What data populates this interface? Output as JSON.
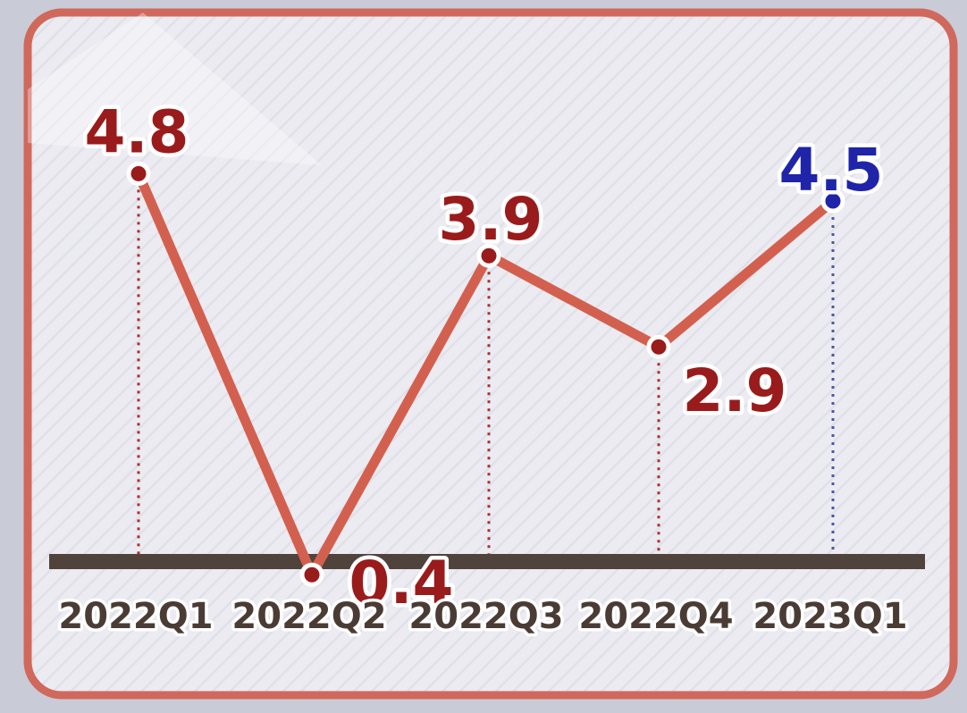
{
  "chart_data": {
    "type": "line",
    "categories": [
      "2022Q1",
      "2022Q2",
      "2022Q3",
      "2022Q4",
      "2023Q1"
    ],
    "values": [
      4.8,
      0.4,
      3.9,
      2.9,
      4.5
    ],
    "value_labels": [
      "4.8",
      "0.4",
      "3.9",
      "2.9",
      "4.5"
    ],
    "ylim": [
      0,
      5.6
    ],
    "grid": false,
    "title": "",
    "xlabel": "",
    "ylabel": ""
  },
  "colors": {
    "line": "#d3604f",
    "actual_point": "#9a1b1b",
    "forecast_point": "#1f24a8",
    "baseline": "#4f433c",
    "frame": "#d0685c",
    "panel": "#eaeaf0"
  },
  "highlighted_category_index": 4
}
